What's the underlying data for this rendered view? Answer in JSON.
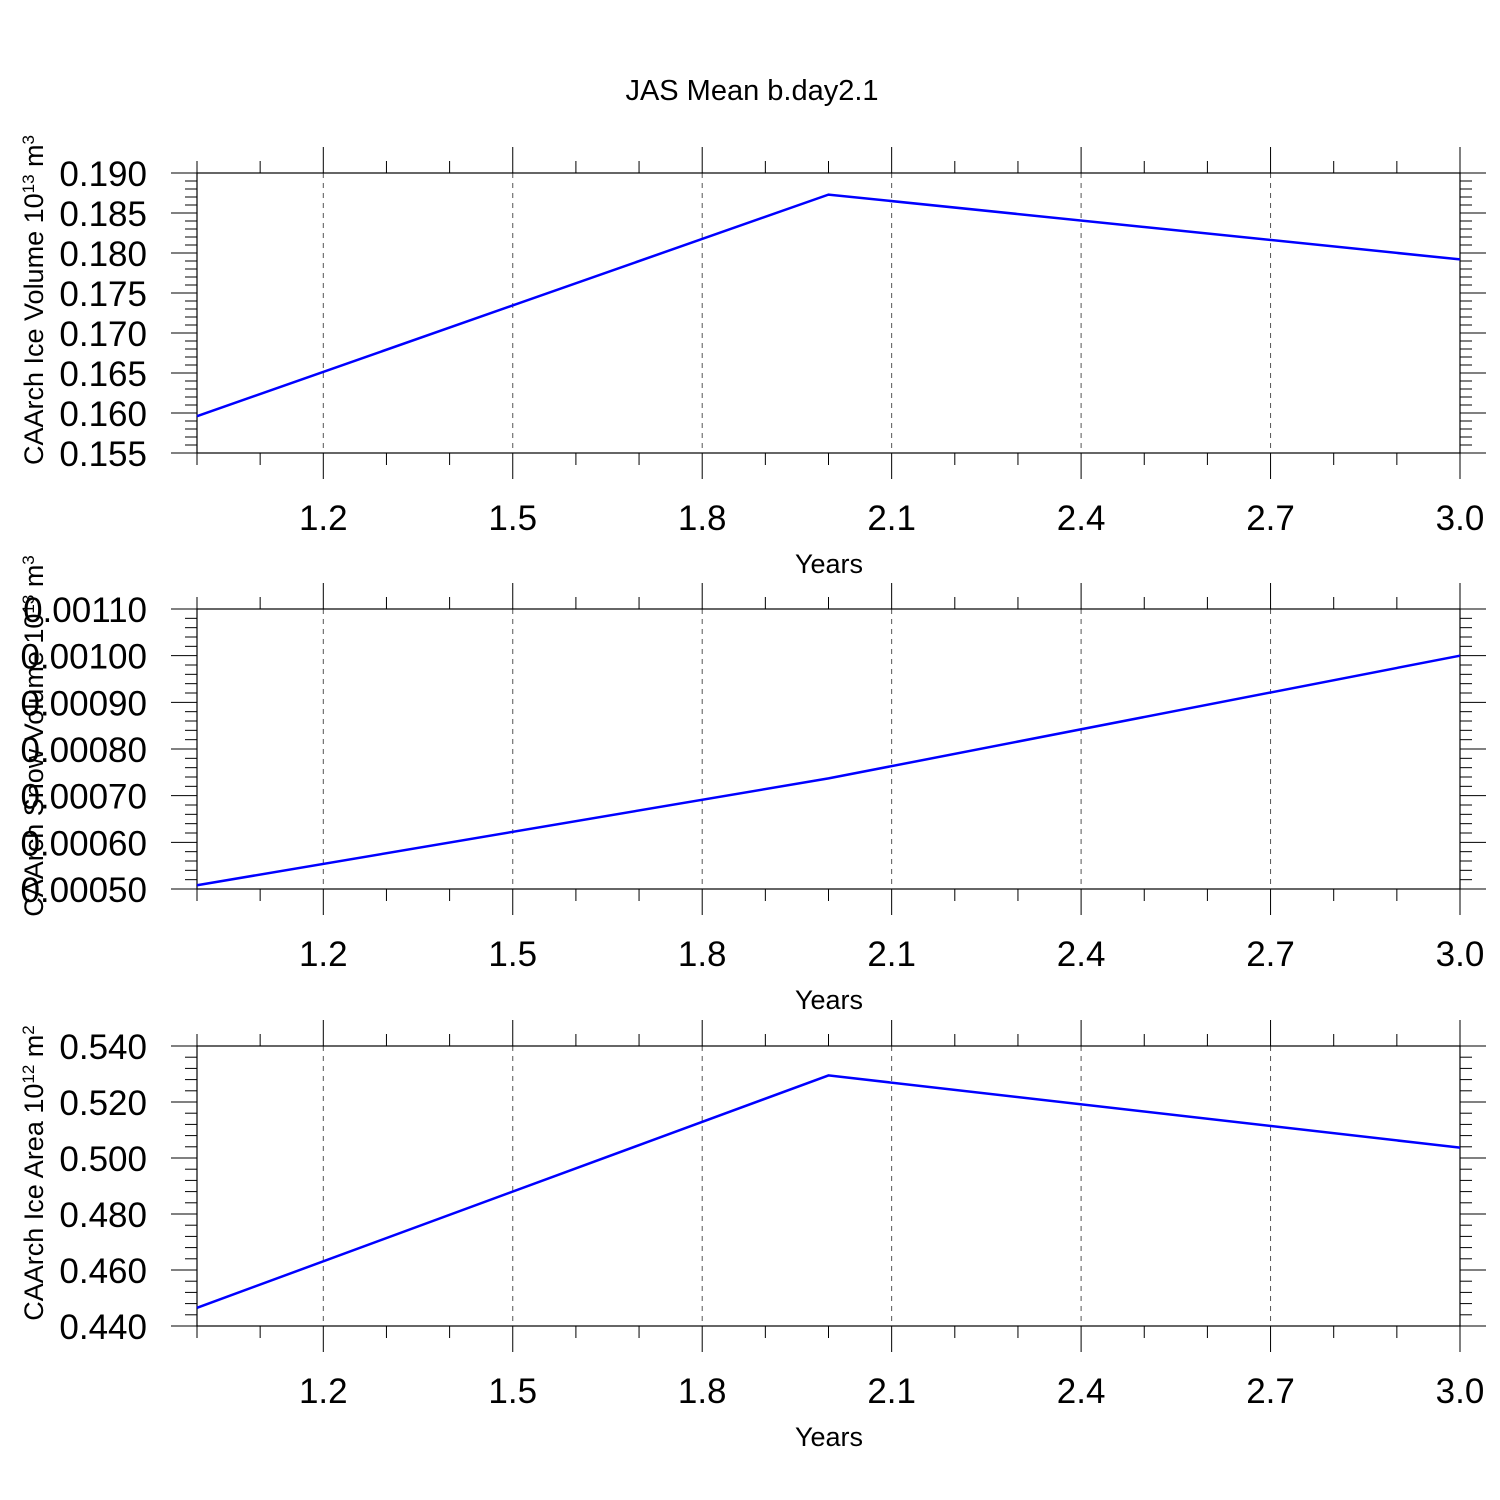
{
  "title": "JAS Mean b.day2.1",
  "chart_data": [
    {
      "type": "line",
      "ylabel": {
        "prefix": "CAArch Ice Volume 10",
        "exp": "13",
        "unit": " m",
        "unit_exp": "3"
      },
      "xlabel": "Years",
      "x": [
        1,
        2,
        3
      ],
      "xlim": [
        1,
        3
      ],
      "xticks": [
        "1.2",
        "1.5",
        "1.8",
        "2.1",
        "2.4",
        "2.7",
        "3.0"
      ],
      "ylim": [
        0.155,
        0.19
      ],
      "yticks": [
        "0.155",
        "0.160",
        "0.165",
        "0.170",
        "0.175",
        "0.180",
        "0.185",
        "0.190"
      ],
      "series": [
        {
          "values": [
            0.1596,
            0.1873,
            0.1792
          ],
          "color": "#0000ff"
        }
      ],
      "grid": "x-dashed"
    },
    {
      "type": "line",
      "ylabel": {
        "prefix": "CAArch Snow Volume 10",
        "exp": "13",
        "unit": " m",
        "unit_exp": "3"
      },
      "xlabel": "Years",
      "x": [
        1,
        2,
        3
      ],
      "xlim": [
        1,
        3
      ],
      "xticks": [
        "1.2",
        "1.5",
        "1.8",
        "2.1",
        "2.4",
        "2.7",
        "3.0"
      ],
      "ylim": [
        0.0005,
        0.0011
      ],
      "yticks": [
        "0.00050",
        "0.00060",
        "0.00070",
        "0.00080",
        "0.00090",
        "0.00100",
        "0.00110"
      ],
      "series": [
        {
          "values": [
            0.000508,
            0.000737,
            0.001
          ],
          "color": "#0000ff"
        }
      ],
      "grid": "x-dashed"
    },
    {
      "type": "line",
      "ylabel": {
        "prefix": "CAArch Ice Area 10",
        "exp": "12",
        "unit": " m",
        "unit_exp": "2"
      },
      "xlabel": "Years",
      "x": [
        1,
        2,
        3
      ],
      "xlim": [
        1,
        3
      ],
      "xticks": [
        "1.2",
        "1.5",
        "1.8",
        "2.1",
        "2.4",
        "2.7",
        "3.0"
      ],
      "ylim": [
        0.44,
        0.54
      ],
      "yticks": [
        "0.440",
        "0.460",
        "0.480",
        "0.500",
        "0.520",
        "0.540"
      ],
      "series": [
        {
          "values": [
            0.4465,
            0.5295,
            0.5037
          ],
          "color": "#0000ff"
        }
      ],
      "grid": "x-dashed"
    }
  ]
}
